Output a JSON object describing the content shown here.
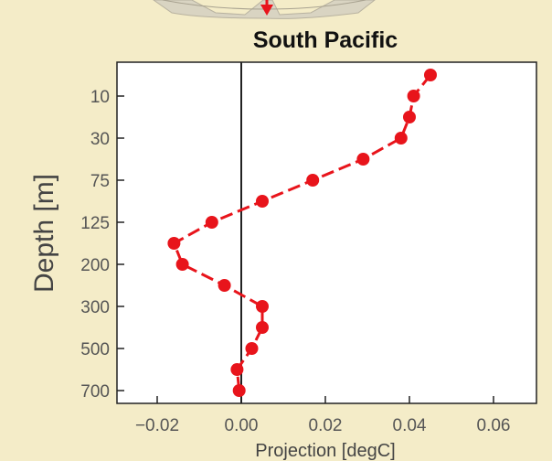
{
  "chart_data": {
    "type": "scatter",
    "title": "South Pacific",
    "xlabel": "Projection [degC]",
    "ylabel": "Depth [m]",
    "xlim": [
      -0.025,
      0.07
    ],
    "x_ticks": [
      -0.02,
      0.0,
      0.02,
      0.04,
      0.06
    ],
    "x_tick_labels": [
      "−0.02",
      "0.00",
      "0.02",
      "0.04",
      "0.06"
    ],
    "y_tick_labels": [
      "10",
      "30",
      "75",
      "125",
      "200",
      "300",
      "500",
      "700"
    ],
    "y_scale": "ordinal, depth increasing downward",
    "grid": false,
    "legend": "none",
    "zero_line": true,
    "series": [
      {
        "style": "red dashed line with circle markers",
        "color": "#e8141b",
        "points": [
          {
            "depth_level": 0.5,
            "x": 0.045
          },
          {
            "depth_level": 1.0,
            "x": 0.041
          },
          {
            "depth_level": 1.5,
            "x": 0.04
          },
          {
            "depth_level": 2.0,
            "x": 0.038
          },
          {
            "depth_level": 2.5,
            "x": 0.029
          },
          {
            "depth_level": 3.0,
            "x": 0.017
          },
          {
            "depth_level": 3.5,
            "x": 0.005
          },
          {
            "depth_level": 4.0,
            "x": -0.007
          },
          {
            "depth_level": 4.5,
            "x": -0.016
          },
          {
            "depth_level": 5.0,
            "x": -0.014
          },
          {
            "depth_level": 5.5,
            "x": -0.004
          },
          {
            "depth_level": 6.0,
            "x": 0.005
          },
          {
            "depth_level": 6.5,
            "x": 0.005
          },
          {
            "depth_level": 7.0,
            "x": 0.0025
          },
          {
            "depth_level": 7.5,
            "x": -0.001
          },
          {
            "depth_level": 8.0,
            "x": -0.0005
          }
        ]
      }
    ]
  }
}
